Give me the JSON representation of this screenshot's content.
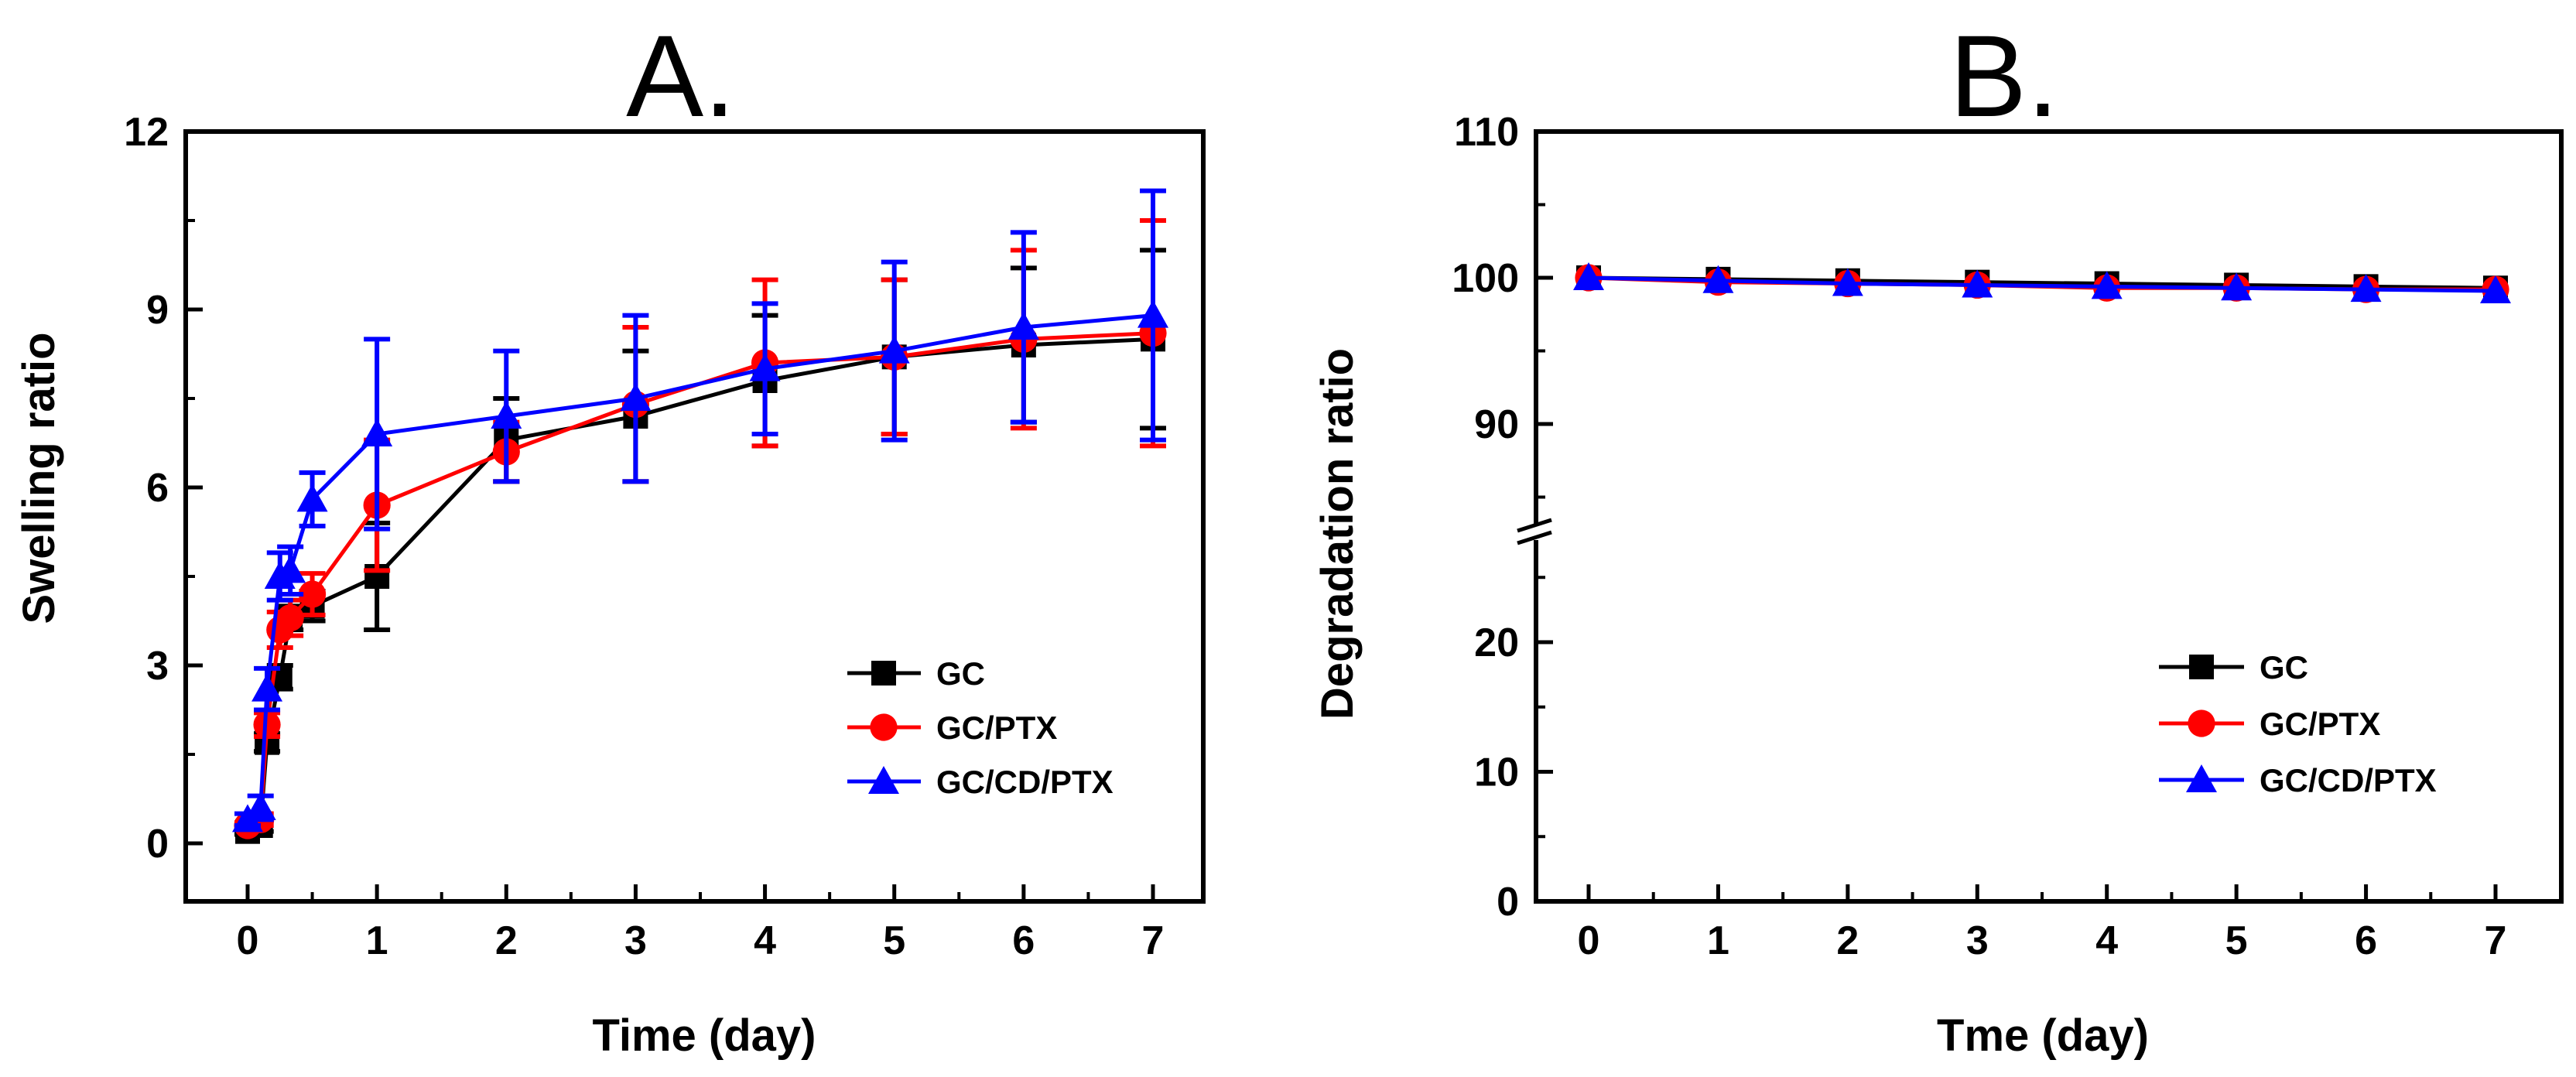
{
  "chart_data": [
    {
      "panel": "A.",
      "type": "line",
      "xlabel": "Time (day)",
      "ylabel": "Swelling ratio",
      "xlim": [
        -0.5,
        7.5
      ],
      "ylim": [
        -1,
        12
      ],
      "x_ticks": [
        0,
        1,
        2,
        3,
        4,
        5,
        6,
        7
      ],
      "y_ticks": [
        0,
        3,
        6,
        9,
        12
      ],
      "legend_position": "lower-right",
      "x": [
        0,
        0.1,
        0.15,
        0.25,
        0.33,
        0.5,
        1,
        2,
        3,
        4,
        5,
        6,
        7
      ],
      "series": [
        {
          "name": "GC",
          "color": "#000000",
          "marker": "square",
          "values": [
            0.2,
            0.3,
            1.7,
            2.8,
            3.8,
            4.0,
            4.5,
            6.8,
            7.2,
            7.8,
            8.2,
            8.4,
            8.5
          ],
          "errors": [
            0.05,
            0.1,
            0.15,
            0.2,
            0.2,
            0.25,
            0.9,
            0.7,
            1.1,
            1.1,
            1.3,
            1.3,
            1.5
          ]
        },
        {
          "name": "GC/PTX",
          "color": "#ff0000",
          "marker": "circle",
          "values": [
            0.3,
            0.4,
            2.0,
            3.6,
            3.8,
            4.2,
            5.7,
            6.6,
            7.4,
            8.1,
            8.2,
            8.5,
            8.6
          ],
          "errors": [
            0.05,
            0.1,
            0.2,
            0.3,
            0.3,
            0.35,
            1.1,
            0.5,
            1.3,
            1.4,
            1.3,
            1.5,
            1.9
          ]
        },
        {
          "name": "GC/CD/PTX",
          "color": "#0000ff",
          "marker": "triangle",
          "values": [
            0.4,
            0.6,
            2.6,
            4.5,
            4.6,
            5.8,
            6.9,
            7.2,
            7.5,
            8.0,
            8.3,
            8.7,
            8.9
          ],
          "errors": [
            0.1,
            0.2,
            0.35,
            0.4,
            0.4,
            0.45,
            1.6,
            1.1,
            1.4,
            1.1,
            1.5,
            1.6,
            2.1
          ]
        }
      ]
    },
    {
      "panel": "B.",
      "type": "line",
      "xlabel": "Tme (day)",
      "ylabel": "Degradation ratio",
      "xlim": [
        -0.5,
        7.5
      ],
      "y_break": {
        "lower": [
          0,
          30
        ],
        "upper": [
          80,
          110
        ]
      },
      "x_ticks": [
        0,
        1,
        2,
        3,
        4,
        5,
        6,
        7
      ],
      "y_ticks_lower": [
        0,
        10,
        20
      ],
      "y_ticks_upper": [
        90,
        100,
        110
      ],
      "legend_position": "lower-right",
      "x": [
        0,
        1,
        2,
        3,
        4,
        5,
        6,
        7
      ],
      "series": [
        {
          "name": "GC",
          "color": "#000000",
          "marker": "square",
          "values": [
            100.0,
            99.9,
            99.8,
            99.7,
            99.6,
            99.5,
            99.4,
            99.3
          ]
        },
        {
          "name": "GC/PTX",
          "color": "#ff0000",
          "marker": "circle",
          "values": [
            100.0,
            99.7,
            99.6,
            99.5,
            99.3,
            99.3,
            99.2,
            99.2
          ]
        },
        {
          "name": "GC/CD/PTX",
          "color": "#0000ff",
          "marker": "triangle",
          "values": [
            100.0,
            99.8,
            99.6,
            99.5,
            99.4,
            99.3,
            99.2,
            99.1
          ]
        }
      ]
    }
  ]
}
